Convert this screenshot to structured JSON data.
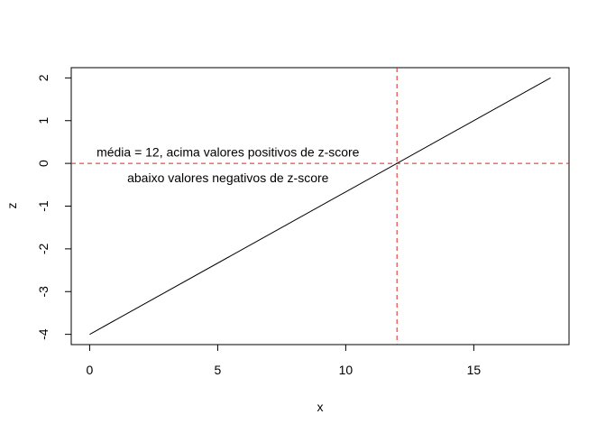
{
  "chart_data": {
    "type": "line",
    "title": "",
    "xlabel": "x",
    "ylabel": "z",
    "xlim": [
      -0.72,
      18.72
    ],
    "ylim": [
      -4.24,
      2.24
    ],
    "x_ticks": [
      0,
      5,
      10,
      15
    ],
    "x_tick_labels": [
      "0",
      "5",
      "10",
      "15"
    ],
    "y_ticks": [
      -4,
      -3,
      -2,
      -1,
      0,
      1,
      2
    ],
    "y_tick_labels": [
      "-4",
      "-3",
      "-2",
      "-1",
      "0",
      "1",
      "2"
    ],
    "grid": false,
    "series": [
      {
        "x": [
          0,
          18
        ],
        "y": [
          -4,
          2
        ],
        "color": "#000000"
      }
    ],
    "reference_lines": [
      {
        "orientation": "vertical",
        "value": 12,
        "color": "#dd2222",
        "style": "dashed"
      },
      {
        "orientation": "horizontal",
        "value": 0,
        "color": "#dd2222",
        "style": "dashed"
      }
    ],
    "annotations": [
      {
        "text": "média = 12, acima valores positivos de z-score",
        "x": 5.4,
        "y": 0.27
      },
      {
        "text": "abaixo valores negativos de z-score",
        "x": 5.4,
        "y": -0.34
      }
    ]
  }
}
